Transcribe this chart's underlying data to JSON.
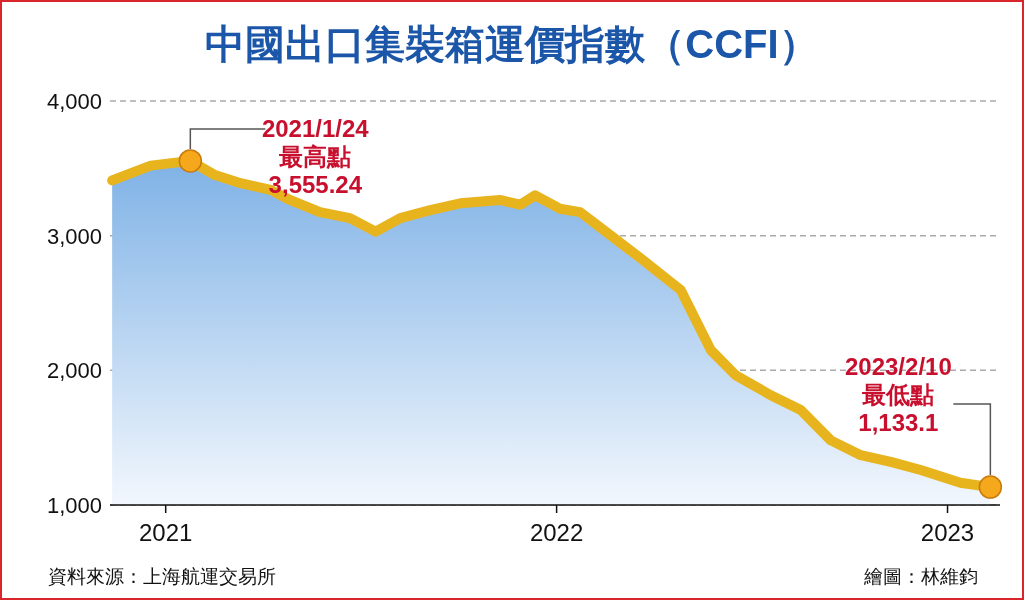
{
  "chart_data": {
    "type": "area",
    "title": "中國出口集裝箱運價指數（CCFI）",
    "x": [
      "2020-11-12",
      "2020-12-18",
      "2021-01-24",
      "2021-02-16",
      "2021-03-12",
      "2021-04-09",
      "2021-04-27",
      "2021-05-25",
      "2021-06-22",
      "2021-07-16",
      "2021-08-08",
      "2021-09-05",
      "2021-10-03",
      "2021-11-09",
      "2021-11-28",
      "2021-12-12",
      "2022-01-04",
      "2022-01-23",
      "2022-02-20",
      "2022-03-20",
      "2022-04-27",
      "2022-05-25",
      "2022-06-17",
      "2022-07-20",
      "2022-08-17",
      "2022-09-14",
      "2022-10-12",
      "2022-11-09",
      "2022-12-07",
      "2023-01-13",
      "2023-02-10"
    ],
    "series": [
      {
        "color": "#e8b41e",
        "values": [
          3410,
          3520,
          3555.24,
          3450,
          3390,
          3340,
          3265,
          3175,
          3130,
          3030,
          3130,
          3190,
          3240,
          3265,
          3230,
          3300,
          3200,
          3175,
          3005,
          2835,
          2595,
          2150,
          1965,
          1815,
          1705,
          1480,
          1370,
          1320,
          1260,
          1165,
          1133.1
        ]
      }
    ],
    "xlim": [
      "2020-11-10",
      "2023-02-19"
    ],
    "xticks": [
      {
        "value": "2021-01-01",
        "label": "2021"
      },
      {
        "value": "2022-01-01",
        "label": "2022"
      },
      {
        "value": "2023-01-01",
        "label": "2023"
      }
    ],
    "ylim": [
      1000,
      4000
    ],
    "yticks": [
      {
        "value": 1000,
        "label": "1,000"
      },
      {
        "value": 2000,
        "label": "2,000"
      },
      {
        "value": 3000,
        "label": "3,000"
      },
      {
        "value": 4000,
        "label": "4,000"
      }
    ],
    "grid": "y",
    "annotations": [
      {
        "text": "2021/1/24\n最高點\n3,555.24",
        "x": "2021-01-24",
        "y": 3555.24
      },
      {
        "text": "2023/2/10\n最低點\n1,133.1",
        "x": "2023-02-10",
        "y": 1133.1
      },
      "資料來源：上海航運交易所",
      "繪圖：林維鈞"
    ]
  }
}
